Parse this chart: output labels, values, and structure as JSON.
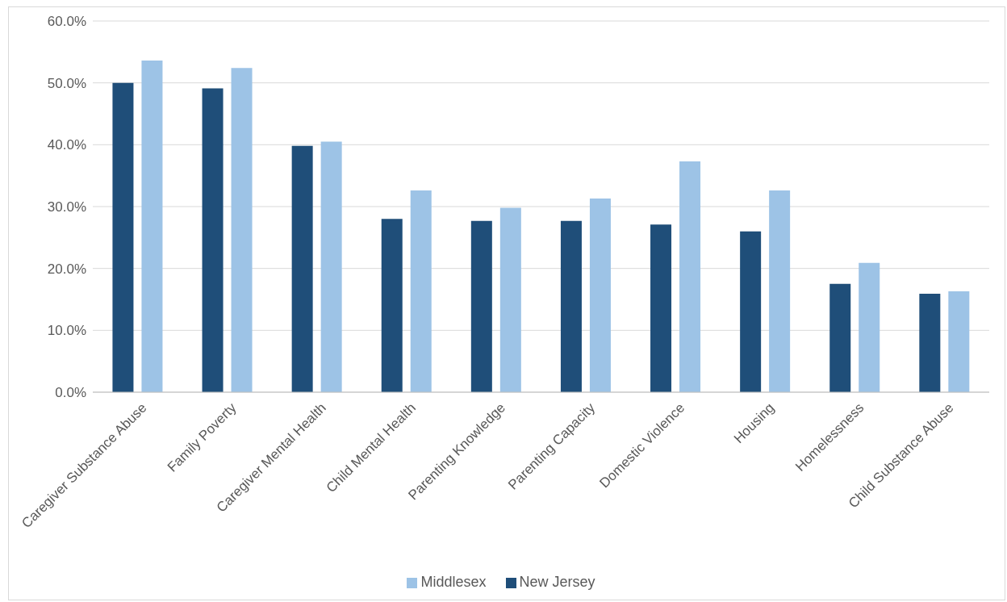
{
  "chart_data": {
    "type": "bar",
    "categories": [
      "Caregiver Substance Abuse",
      "Family Poverty",
      "Caregiver Mental Health",
      "Child Mental Health",
      "Parenting Knowledge",
      "Parenting Capacity",
      "Domestic Violence",
      "Housing",
      "Homelessness",
      "Child Substance Abuse"
    ],
    "series": [
      {
        "name": "New Jersey",
        "color": "#1f4e79",
        "values": [
          50.0,
          49.1,
          39.8,
          28.0,
          27.7,
          27.7,
          27.1,
          26.0,
          17.5,
          15.9
        ]
      },
      {
        "name": "Middlesex",
        "color": "#9dc3e6",
        "values": [
          53.6,
          52.4,
          40.5,
          32.6,
          29.8,
          31.3,
          37.3,
          32.6,
          20.9,
          16.3
        ]
      }
    ],
    "ylim": [
      0,
      60
    ],
    "yticks": [
      {
        "value": 0,
        "label": "0.0%"
      },
      {
        "value": 10,
        "label": "10.0%"
      },
      {
        "value": 20,
        "label": "20.0%"
      },
      {
        "value": 30,
        "label": "30.0%"
      },
      {
        "value": 40,
        "label": "40.0%"
      },
      {
        "value": 50,
        "label": "50.0%"
      },
      {
        "value": 60,
        "label": "60.0%"
      }
    ],
    "grid": "y",
    "legend": "bottom"
  }
}
